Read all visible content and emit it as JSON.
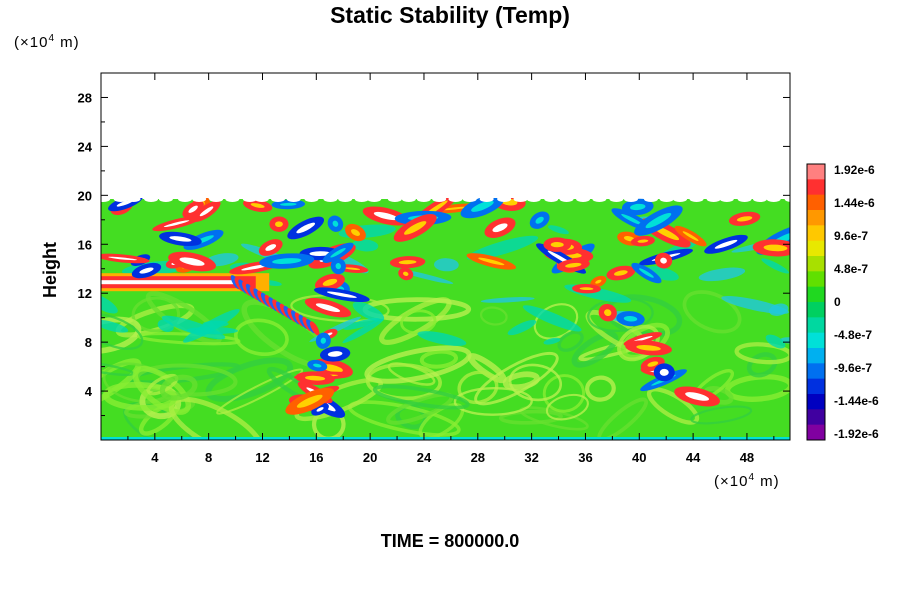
{
  "chart_data": {
    "type": "heatmap",
    "title": "Static Stability (Temp)",
    "ylabel": "Height",
    "xunit_prefix": "(×10",
    "xunit_exp": "4",
    "xunit_suffix": " m)",
    "yunit_prefix": "(×10",
    "yunit_exp": "4",
    "yunit_suffix": " m)",
    "xlim": [
      0,
      51.2
    ],
    "ylim": [
      0,
      30
    ],
    "xticks": [
      4,
      8,
      12,
      16,
      20,
      24,
      28,
      32,
      36,
      40,
      44,
      48
    ],
    "yticks": [
      4,
      8,
      12,
      16,
      20,
      24,
      28
    ],
    "data_top": 19.7,
    "jet_height": 12.9,
    "colorbar": {
      "labels": [
        "1.92e-6",
        "1.44e-6",
        "9.6e-7",
        "4.8e-7",
        "0",
        "-4.8e-7",
        "-9.6e-7",
        "-1.44e-6",
        "-1.92e-6"
      ],
      "min": -1.92e-06,
      "max": 1.92e-06,
      "colors": [
        "#ff8080",
        "#ff3030",
        "#ff6000",
        "#ff9800",
        "#ffc800",
        "#e8e800",
        "#a8e000",
        "#60e000",
        "#20d820",
        "#00d060",
        "#00d8a0",
        "#00e0d8",
        "#00b0f0",
        "#0070f0",
        "#0030e0",
        "#0000c0",
        "#4000a0",
        "#8000a0"
      ]
    },
    "time_label": "TIME = 800000.0"
  }
}
